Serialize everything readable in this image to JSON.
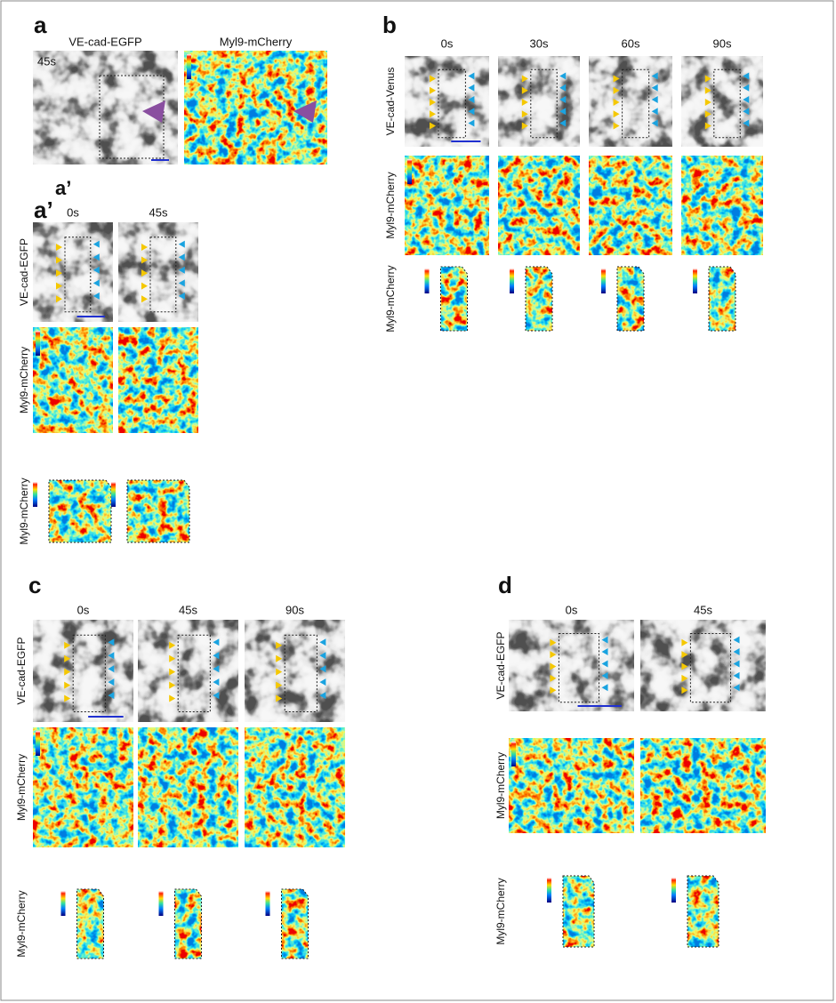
{
  "panels": [
    {
      "label": "a",
      "columns": [
        "VE-cad-EGFP",
        "Myl9-mCherry"
      ],
      "time": "45s",
      "inset_label": "a’"
    },
    {
      "label": "a’",
      "columns": [
        "0s",
        "45s"
      ],
      "rows": [
        "VE-cad-EGFP",
        "Myl9-mCherry",
        "Myl9-mCherry"
      ]
    },
    {
      "label": "b",
      "columns": [
        "0s",
        "30s",
        "60s",
        "90s"
      ],
      "rows": [
        "VE-cad-Venus",
        "Myl9-mCherry",
        "Myl9-mCherry"
      ]
    },
    {
      "label": "c",
      "columns": [
        "0s",
        "45s",
        "90s"
      ],
      "rows": [
        "VE-cad-EGFP",
        "Myl9-mCherry",
        "Myl9-mCherry"
      ]
    },
    {
      "label": "d",
      "columns": [
        "0s",
        "45s"
      ],
      "rows": [
        "VE-cad-EGFP",
        "Myl9-mCherry",
        "Myl9-mCherry"
      ]
    }
  ]
}
